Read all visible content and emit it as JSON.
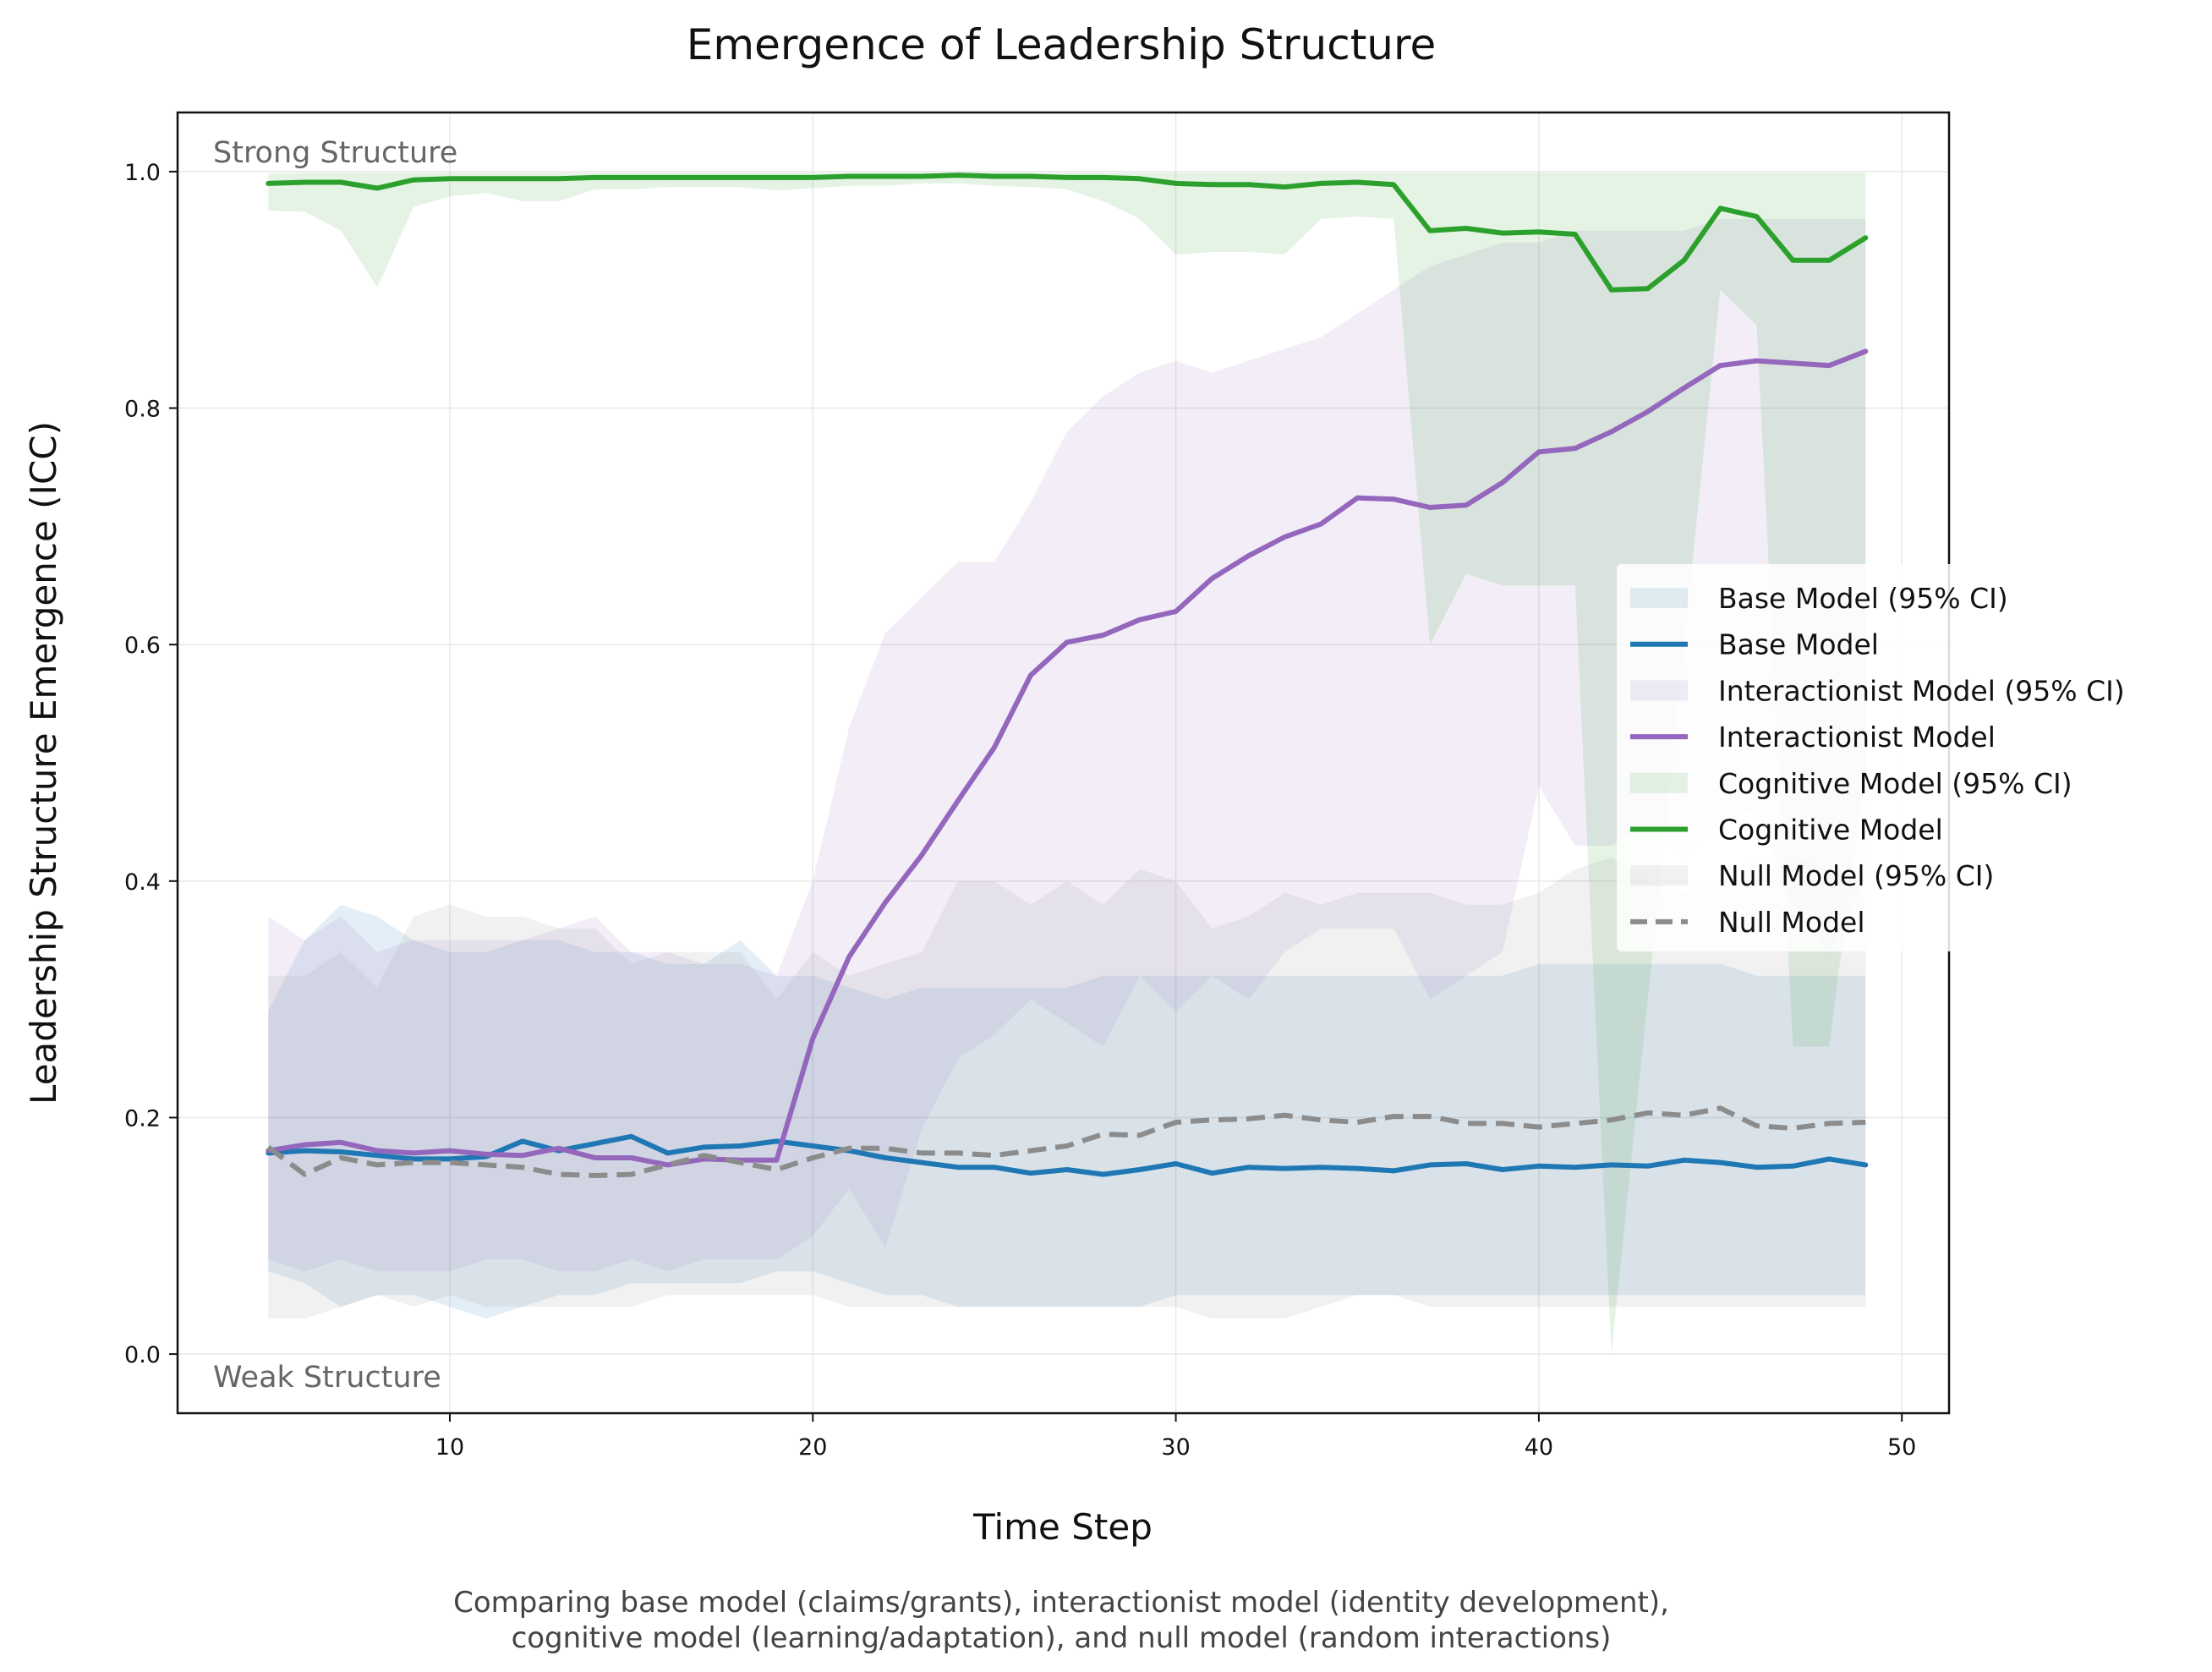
{
  "chart_data": {
    "type": "line",
    "title": "Emergence of Leadership Structure",
    "xlabel": "Time Step",
    "ylabel": "Leadership Structure Emergence (ICC)",
    "xlim": [
      2.5,
      51.3
    ],
    "ylim": [
      -0.05,
      1.05
    ],
    "xticks": [
      10,
      20,
      30,
      40,
      50
    ],
    "yticks": [
      0.0,
      0.2,
      0.4,
      0.6,
      0.8,
      1.0
    ],
    "xtick_labels": [
      "10",
      "20",
      "30",
      "40",
      "50"
    ],
    "ytick_labels": [
      "0.0",
      "0.2",
      "0.4",
      "0.6",
      "0.8",
      "1.0"
    ],
    "grid": true,
    "legend_position": "center-right",
    "annotations": {
      "strong": "Strong Structure",
      "weak": "Weak Structure"
    },
    "caption_lines": [
      "Comparing base model (claims/grants), interactionist model (identity development),",
      "cognitive model (learning/adaptation), and null model (random interactions)"
    ],
    "x": [
      5,
      6,
      7,
      8,
      9,
      10,
      11,
      12,
      13,
      14,
      15,
      16,
      17,
      18,
      19,
      20,
      21,
      22,
      23,
      24,
      25,
      26,
      27,
      28,
      29,
      30,
      31,
      32,
      33,
      34,
      35,
      36,
      37,
      38,
      39,
      40,
      41,
      42,
      43,
      44,
      45,
      46,
      47,
      48,
      49
    ],
    "series": [
      {
        "name": "Base Model",
        "ci_label": "Base Model (95% CI)",
        "color": "#1f77b4",
        "dashed": false,
        "values": [
          0.17,
          0.172,
          0.171,
          0.168,
          0.165,
          0.165,
          0.167,
          0.18,
          0.172,
          0.178,
          0.184,
          0.17,
          0.175,
          0.176,
          0.18,
          0.176,
          0.172,
          0.166,
          0.162,
          0.158,
          0.158,
          0.153,
          0.156,
          0.152,
          0.156,
          0.161,
          0.153,
          0.158,
          0.157,
          0.158,
          0.157,
          0.155,
          0.16,
          0.161,
          0.156,
          0.159,
          0.158,
          0.16,
          0.159,
          0.164,
          0.162,
          0.158,
          0.159,
          0.165,
          0.16
        ],
        "ci_lower": [
          0.07,
          0.06,
          0.04,
          0.05,
          0.05,
          0.04,
          0.03,
          0.04,
          0.05,
          0.05,
          0.06,
          0.06,
          0.06,
          0.06,
          0.07,
          0.07,
          0.06,
          0.05,
          0.05,
          0.04,
          0.04,
          0.04,
          0.04,
          0.04,
          0.04,
          0.05,
          0.05,
          0.05,
          0.05,
          0.05,
          0.05,
          0.05,
          0.05,
          0.05,
          0.05,
          0.05,
          0.05,
          0.05,
          0.05,
          0.05,
          0.05,
          0.05,
          0.05,
          0.05,
          0.05
        ],
        "ci_upper": [
          0.29,
          0.35,
          0.38,
          0.37,
          0.35,
          0.34,
          0.34,
          0.35,
          0.35,
          0.34,
          0.34,
          0.33,
          0.33,
          0.35,
          0.32,
          0.32,
          0.31,
          0.3,
          0.31,
          0.31,
          0.31,
          0.31,
          0.31,
          0.32,
          0.32,
          0.32,
          0.32,
          0.32,
          0.32,
          0.32,
          0.32,
          0.32,
          0.32,
          0.32,
          0.32,
          0.33,
          0.33,
          0.33,
          0.33,
          0.33,
          0.33,
          0.32,
          0.32,
          0.32,
          0.32
        ]
      },
      {
        "name": "Interactionist Model",
        "ci_label": "Interactionist Model (95% CI)",
        "color": "#9467bd",
        "dashed": false,
        "values": [
          0.172,
          0.177,
          0.179,
          0.172,
          0.17,
          0.172,
          0.169,
          0.168,
          0.174,
          0.166,
          0.166,
          0.16,
          0.165,
          0.164,
          0.164,
          0.267,
          0.336,
          0.382,
          0.422,
          0.468,
          0.513,
          0.574,
          0.602,
          0.608,
          0.621,
          0.628,
          0.656,
          0.675,
          0.691,
          0.702,
          0.724,
          0.723,
          0.716,
          0.718,
          0.737,
          0.763,
          0.766,
          0.78,
          0.797,
          0.817,
          0.836,
          0.84,
          0.838,
          0.836,
          0.848
        ],
        "ci_lower": [
          0.08,
          0.07,
          0.08,
          0.07,
          0.07,
          0.07,
          0.08,
          0.08,
          0.07,
          0.07,
          0.08,
          0.07,
          0.08,
          0.08,
          0.08,
          0.1,
          0.14,
          0.09,
          0.19,
          0.25,
          0.27,
          0.3,
          0.28,
          0.26,
          0.32,
          0.29,
          0.32,
          0.3,
          0.34,
          0.36,
          0.36,
          0.36,
          0.3,
          0.32,
          0.34,
          0.48,
          0.43,
          0.43,
          0.45,
          0.42,
          0.45,
          0.46,
          0.38,
          0.34,
          0.4
        ],
        "ci_upper": [
          0.37,
          0.35,
          0.37,
          0.34,
          0.35,
          0.35,
          0.35,
          0.35,
          0.36,
          0.37,
          0.34,
          0.34,
          0.33,
          0.33,
          0.32,
          0.4,
          0.53,
          0.61,
          0.64,
          0.67,
          0.67,
          0.72,
          0.78,
          0.81,
          0.83,
          0.84,
          0.83,
          0.84,
          0.85,
          0.86,
          0.88,
          0.9,
          0.92,
          0.93,
          0.94,
          0.94,
          0.95,
          0.95,
          0.95,
          0.95,
          0.96,
          0.96,
          0.96,
          0.96,
          0.96
        ]
      },
      {
        "name": "Cognitive Model",
        "ci_label": "Cognitive Model (95% CI)",
        "color": "#2ca02c",
        "dashed": false,
        "values": [
          0.99,
          0.991,
          0.991,
          0.986,
          0.993,
          0.994,
          0.994,
          0.994,
          0.994,
          0.995,
          0.995,
          0.995,
          0.995,
          0.995,
          0.995,
          0.995,
          0.996,
          0.996,
          0.996,
          0.997,
          0.996,
          0.996,
          0.995,
          0.995,
          0.994,
          0.99,
          0.989,
          0.989,
          0.987,
          0.99,
          0.991,
          0.989,
          0.95,
          0.952,
          0.948,
          0.949,
          0.947,
          0.9,
          0.901,
          0.925,
          0.969,
          0.962,
          0.925,
          0.925,
          0.944
        ],
        "ci_lower": [
          0.967,
          0.966,
          0.95,
          0.902,
          0.97,
          0.979,
          0.982,
          0.975,
          0.975,
          0.985,
          0.985,
          0.987,
          0.987,
          0.987,
          0.984,
          0.986,
          0.988,
          0.988,
          0.99,
          0.99,
          0.988,
          0.987,
          0.985,
          0.975,
          0.96,
          0.93,
          0.932,
          0.932,
          0.93,
          0.96,
          0.962,
          0.96,
          0.6,
          0.66,
          0.65,
          0.65,
          0.65,
          0.0,
          0.3,
          0.6,
          0.9,
          0.87,
          0.26,
          0.26,
          0.5
        ],
        "ci_upper": [
          0.998,
          0.999,
          0.999,
          0.999,
          0.999,
          0.999,
          0.999,
          0.999,
          0.999,
          0.999,
          0.999,
          0.999,
          0.999,
          0.999,
          0.999,
          0.999,
          0.999,
          0.999,
          0.999,
          0.999,
          0.999,
          0.999,
          0.999,
          0.999,
          0.999,
          0.999,
          0.999,
          0.999,
          0.999,
          0.999,
          0.999,
          0.999,
          0.999,
          0.999,
          0.999,
          0.999,
          0.999,
          0.999,
          0.999,
          0.999,
          0.999,
          0.999,
          0.999,
          0.999,
          0.999
        ]
      },
      {
        "name": "Null Model",
        "ci_label": "Null Model (95% CI)",
        "color": "#8c8c8c",
        "dashed": true,
        "values": [
          0.175,
          0.152,
          0.166,
          0.16,
          0.162,
          0.162,
          0.16,
          0.158,
          0.152,
          0.151,
          0.152,
          0.16,
          0.168,
          0.162,
          0.156,
          0.166,
          0.174,
          0.174,
          0.17,
          0.17,
          0.168,
          0.172,
          0.176,
          0.186,
          0.185,
          0.196,
          0.198,
          0.199,
          0.202,
          0.198,
          0.196,
          0.201,
          0.201,
          0.195,
          0.195,
          0.192,
          0.195,
          0.198,
          0.204,
          0.202,
          0.208,
          0.193,
          0.191,
          0.195,
          0.196
        ],
        "ci_lower": [
          0.03,
          0.03,
          0.04,
          0.05,
          0.04,
          0.05,
          0.04,
          0.04,
          0.04,
          0.04,
          0.04,
          0.05,
          0.05,
          0.05,
          0.05,
          0.05,
          0.04,
          0.04,
          0.04,
          0.04,
          0.04,
          0.04,
          0.04,
          0.04,
          0.04,
          0.04,
          0.03,
          0.03,
          0.03,
          0.04,
          0.05,
          0.05,
          0.04,
          0.04,
          0.04,
          0.04,
          0.04,
          0.04,
          0.04,
          0.04,
          0.04,
          0.04,
          0.04,
          0.04,
          0.04
        ],
        "ci_upper": [
          0.32,
          0.32,
          0.34,
          0.31,
          0.37,
          0.38,
          0.37,
          0.37,
          0.36,
          0.36,
          0.33,
          0.34,
          0.34,
          0.34,
          0.3,
          0.34,
          0.32,
          0.33,
          0.34,
          0.4,
          0.4,
          0.38,
          0.4,
          0.38,
          0.41,
          0.4,
          0.36,
          0.37,
          0.39,
          0.38,
          0.39,
          0.39,
          0.39,
          0.38,
          0.38,
          0.39,
          0.41,
          0.42,
          0.4,
          0.39,
          0.4,
          0.42,
          0.42,
          0.41,
          0.4
        ]
      }
    ]
  }
}
